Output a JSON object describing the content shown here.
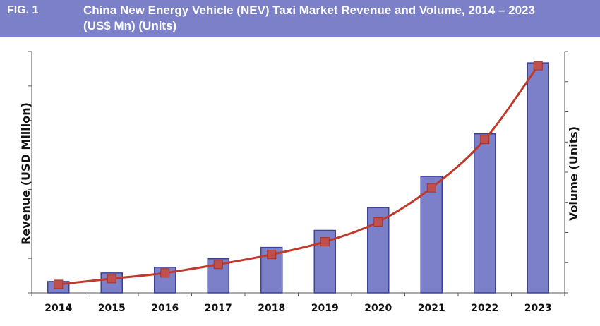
{
  "header": {
    "fig_label": "FIG. 1",
    "title_line1": "China New Energy Vehicle (NEV) Taxi Market Revenue and Volume, 2014 – 2023",
    "title_line2": "(US$ Mn)  (Units)"
  },
  "colors": {
    "header_bg": "#7b80c8",
    "bar_fill": "#7b80c8",
    "bar_stroke": "#3d4295",
    "line": "#c0392b",
    "marker": "#c0504d"
  },
  "chart_data": {
    "type": "bar",
    "categories": [
      "2014",
      "2015",
      "2016",
      "2017",
      "2018",
      "2019",
      "2020",
      "2021",
      "2022",
      "2023"
    ],
    "series": [
      {
        "kind": "bar",
        "axis": "left",
        "values": [
          4,
          7,
          9,
          12,
          16,
          22,
          30,
          41,
          56,
          81
        ]
      },
      {
        "kind": "line",
        "axis": "right",
        "values": [
          3,
          5,
          7,
          10,
          13.5,
          18,
          25,
          37,
          54,
          80
        ]
      }
    ],
    "ylabel": "Revenue (USD Million)",
    "y2label": "Volume (Units)",
    "ylim": [
      0,
      85
    ],
    "y2lim": [
      0,
      85
    ],
    "left_tick_count": 8,
    "right_tick_count": 9,
    "grid": false
  }
}
